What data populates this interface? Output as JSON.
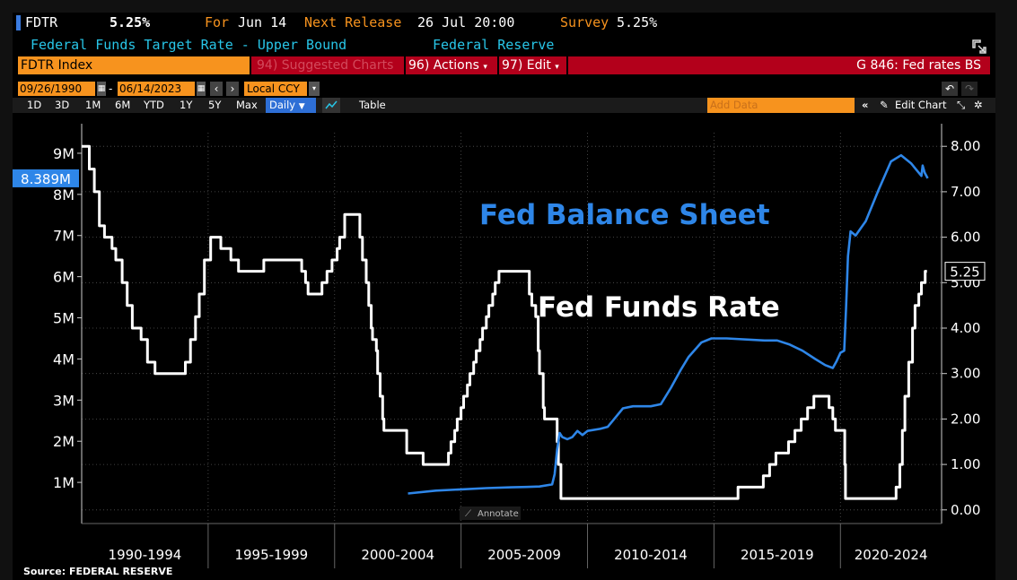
{
  "header": {
    "ticker": "FDTR",
    "value": "5.25%",
    "for_label": "For",
    "for_date": "Jun 14",
    "next_release_label": "Next Release",
    "next_release_value": "26 Jul 20:00",
    "survey_label": "Survey",
    "survey_value": "5.25%",
    "description": "Federal Funds Target Rate - Upper Bound",
    "source_name": "Federal Reserve"
  },
  "toolbar": {
    "security": "FDTR Index",
    "suggested_charts": "94) Suggested Charts",
    "actions": "96) Actions",
    "edit": "97) Edit",
    "chart_name": "G 846: Fed rates BS",
    "start_date": "09/26/1990",
    "end_date": "06/14/2023",
    "currency": "Local CCY",
    "ranges": [
      "1D",
      "3D",
      "1M",
      "6M",
      "YTD",
      "1Y",
      "5Y",
      "Max"
    ],
    "frequency": "Daily",
    "table_label": "Table",
    "add_data_placeholder": "Add Data",
    "edit_chart": "Edit Chart",
    "annotate": "Annotate"
  },
  "colors": {
    "balance_sheet": "#2e86e8",
    "fed_funds": "#ffffff",
    "orange": "#f7931e",
    "red_bar": "#b3001b",
    "cyan": "#28c6e8"
  },
  "source": "Source:  FEDERAL RESERVE",
  "chart_data": {
    "type": "line",
    "annotations": [
      "Fed Balance Sheet",
      "Fed Funds Rate"
    ],
    "x_labels": [
      "1990-1994",
      "1995-1999",
      "2000-2004",
      "2005-2009",
      "2010-2014",
      "2015-2019",
      "2020-2024"
    ],
    "xlim": [
      1990.0,
      2024.0
    ],
    "left_axis": {
      "ticks": [
        "1M",
        "2M",
        "3M",
        "4M",
        "5M",
        "6M",
        "7M",
        "8M",
        "9M"
      ],
      "ylim": [
        0,
        9.5
      ],
      "last_value_label": "8.389M"
    },
    "right_axis": {
      "ticks": [
        "0.00",
        "1.00",
        "2.00",
        "3.00",
        "4.00",
        "5.00",
        "6.00",
        "7.00",
        "8.00"
      ],
      "ylim": [
        -0.3,
        8.3
      ],
      "last_value_label": "5.25"
    },
    "series": [
      {
        "name": "Fed Funds Rate",
        "axis": "right",
        "step": true,
        "points": [
          [
            1990.0,
            8.0
          ],
          [
            1990.1,
            8.0
          ],
          [
            1990.3,
            7.5
          ],
          [
            1990.5,
            7.0
          ],
          [
            1990.7,
            6.25
          ],
          [
            1990.9,
            6.0
          ],
          [
            1991.2,
            5.75
          ],
          [
            1991.35,
            5.5
          ],
          [
            1991.6,
            5.0
          ],
          [
            1991.8,
            4.5
          ],
          [
            1992.0,
            4.0
          ],
          [
            1992.35,
            3.75
          ],
          [
            1992.6,
            3.25
          ],
          [
            1992.9,
            3.0
          ],
          [
            1994.0,
            3.0
          ],
          [
            1994.1,
            3.25
          ],
          [
            1994.3,
            3.75
          ],
          [
            1994.5,
            4.25
          ],
          [
            1994.65,
            4.75
          ],
          [
            1994.85,
            5.5
          ],
          [
            1995.1,
            6.0
          ],
          [
            1995.5,
            5.75
          ],
          [
            1995.9,
            5.5
          ],
          [
            1996.2,
            5.25
          ],
          [
            1997.2,
            5.5
          ],
          [
            1998.7,
            5.25
          ],
          [
            1998.85,
            5.0
          ],
          [
            1998.95,
            4.75
          ],
          [
            1999.5,
            5.0
          ],
          [
            1999.7,
            5.25
          ],
          [
            1999.9,
            5.5
          ],
          [
            2000.1,
            5.75
          ],
          [
            2000.2,
            6.0
          ],
          [
            2000.4,
            6.5
          ],
          [
            2001.0,
            6.0
          ],
          [
            2001.1,
            5.5
          ],
          [
            2001.25,
            5.0
          ],
          [
            2001.35,
            4.5
          ],
          [
            2001.45,
            4.0
          ],
          [
            2001.5,
            3.75
          ],
          [
            2001.65,
            3.5
          ],
          [
            2001.7,
            3.0
          ],
          [
            2001.8,
            2.5
          ],
          [
            2001.9,
            2.0
          ],
          [
            2001.95,
            1.75
          ],
          [
            2002.85,
            1.25
          ],
          [
            2003.5,
            1.0
          ],
          [
            2004.5,
            1.25
          ],
          [
            2004.6,
            1.5
          ],
          [
            2004.75,
            1.75
          ],
          [
            2004.85,
            2.0
          ],
          [
            2005.0,
            2.25
          ],
          [
            2005.1,
            2.5
          ],
          [
            2005.25,
            2.75
          ],
          [
            2005.35,
            3.0
          ],
          [
            2005.5,
            3.25
          ],
          [
            2005.6,
            3.5
          ],
          [
            2005.75,
            3.75
          ],
          [
            2005.85,
            4.0
          ],
          [
            2006.0,
            4.25
          ],
          [
            2006.1,
            4.5
          ],
          [
            2006.25,
            4.75
          ],
          [
            2006.35,
            5.0
          ],
          [
            2006.5,
            5.25
          ],
          [
            2007.7,
            4.75
          ],
          [
            2007.8,
            4.5
          ],
          [
            2007.95,
            4.25
          ],
          [
            2008.05,
            3.5
          ],
          [
            2008.1,
            3.0
          ],
          [
            2008.25,
            2.25
          ],
          [
            2008.3,
            2.0
          ],
          [
            2008.8,
            1.5
          ],
          [
            2008.85,
            1.0
          ],
          [
            2008.95,
            0.25
          ],
          [
            2015.95,
            0.5
          ],
          [
            2016.95,
            0.75
          ],
          [
            2017.2,
            1.0
          ],
          [
            2017.45,
            1.25
          ],
          [
            2017.95,
            1.5
          ],
          [
            2018.2,
            1.75
          ],
          [
            2018.45,
            2.0
          ],
          [
            2018.7,
            2.25
          ],
          [
            2018.95,
            2.5
          ],
          [
            2019.55,
            2.25
          ],
          [
            2019.7,
            2.0
          ],
          [
            2019.8,
            1.75
          ],
          [
            2020.17,
            1.0
          ],
          [
            2020.2,
            0.25
          ],
          [
            2022.2,
            0.5
          ],
          [
            2022.35,
            1.0
          ],
          [
            2022.45,
            1.75
          ],
          [
            2022.55,
            2.5
          ],
          [
            2022.7,
            3.25
          ],
          [
            2022.85,
            4.0
          ],
          [
            2022.95,
            4.5
          ],
          [
            2023.1,
            4.75
          ],
          [
            2023.2,
            5.0
          ],
          [
            2023.35,
            5.25
          ]
        ]
      },
      {
        "name": "Fed Balance Sheet",
        "axis": "left",
        "step": false,
        "points": [
          [
            2002.9,
            0.73
          ],
          [
            2004.0,
            0.8
          ],
          [
            2005.0,
            0.83
          ],
          [
            2006.0,
            0.86
          ],
          [
            2007.0,
            0.88
          ],
          [
            2007.6,
            0.89
          ],
          [
            2008.1,
            0.9
          ],
          [
            2008.6,
            0.95
          ],
          [
            2008.7,
            1.2
          ],
          [
            2008.8,
            1.8
          ],
          [
            2008.9,
            2.2
          ],
          [
            2009.0,
            2.1
          ],
          [
            2009.2,
            2.05
          ],
          [
            2009.4,
            2.1
          ],
          [
            2009.6,
            2.25
          ],
          [
            2009.8,
            2.15
          ],
          [
            2010.0,
            2.25
          ],
          [
            2010.5,
            2.3
          ],
          [
            2010.8,
            2.35
          ],
          [
            2011.0,
            2.5
          ],
          [
            2011.4,
            2.8
          ],
          [
            2011.8,
            2.85
          ],
          [
            2012.5,
            2.85
          ],
          [
            2012.9,
            2.9
          ],
          [
            2013.3,
            3.3
          ],
          [
            2013.7,
            3.75
          ],
          [
            2014.0,
            4.05
          ],
          [
            2014.5,
            4.4
          ],
          [
            2014.9,
            4.5
          ],
          [
            2015.5,
            4.5
          ],
          [
            2017.0,
            4.45
          ],
          [
            2017.5,
            4.45
          ],
          [
            2018.0,
            4.35
          ],
          [
            2018.5,
            4.2
          ],
          [
            2019.0,
            4.0
          ],
          [
            2019.4,
            3.85
          ],
          [
            2019.7,
            3.78
          ],
          [
            2019.85,
            3.95
          ],
          [
            2020.0,
            4.15
          ],
          [
            2020.15,
            4.2
          ],
          [
            2020.22,
            5.2
          ],
          [
            2020.3,
            6.5
          ],
          [
            2020.4,
            7.1
          ],
          [
            2020.6,
            7.0
          ],
          [
            2021.0,
            7.35
          ],
          [
            2021.5,
            8.1
          ],
          [
            2022.0,
            8.8
          ],
          [
            2022.4,
            8.95
          ],
          [
            2022.8,
            8.75
          ],
          [
            2023.0,
            8.6
          ],
          [
            2023.2,
            8.45
          ],
          [
            2023.25,
            8.7
          ],
          [
            2023.33,
            8.53
          ],
          [
            2023.45,
            8.39
          ]
        ]
      }
    ]
  }
}
